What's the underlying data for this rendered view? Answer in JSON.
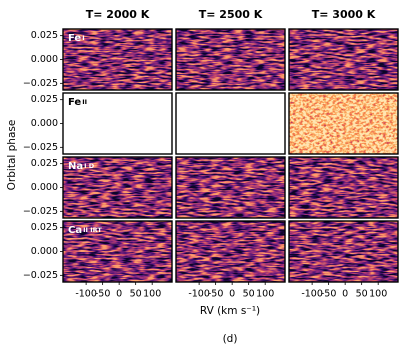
{
  "chart_data": {
    "type": "heatmap-grid",
    "columns": [
      "T= 2000 K",
      "T= 2500 K",
      "T= 3000 K"
    ],
    "rows": [
      {
        "name": "Fe",
        "ion": "I",
        "filled": [
          true,
          true,
          true
        ]
      },
      {
        "name": "Fe",
        "ion": "II",
        "filled": [
          false,
          false,
          true
        ]
      },
      {
        "name": "Na",
        "ion": "I D",
        "filled": [
          true,
          true,
          true
        ]
      },
      {
        "name": "Ca",
        "ion": "II IRT",
        "filled": [
          true,
          true,
          true
        ]
      }
    ],
    "ylabel": "Orbital phase",
    "xlabel": "RV (km s⁻¹)",
    "ylim": [
      -0.032,
      0.032
    ],
    "yticks": [
      {
        "value": 0.025,
        "label": "0.025"
      },
      {
        "value": 0,
        "label": "0.000"
      },
      {
        "value": -0.025,
        "label": "−0.025"
      }
    ],
    "xlim": [
      -170,
      160
    ],
    "xticks": [
      -100,
      -50,
      0,
      50,
      100
    ],
    "caption": "(d)"
  }
}
